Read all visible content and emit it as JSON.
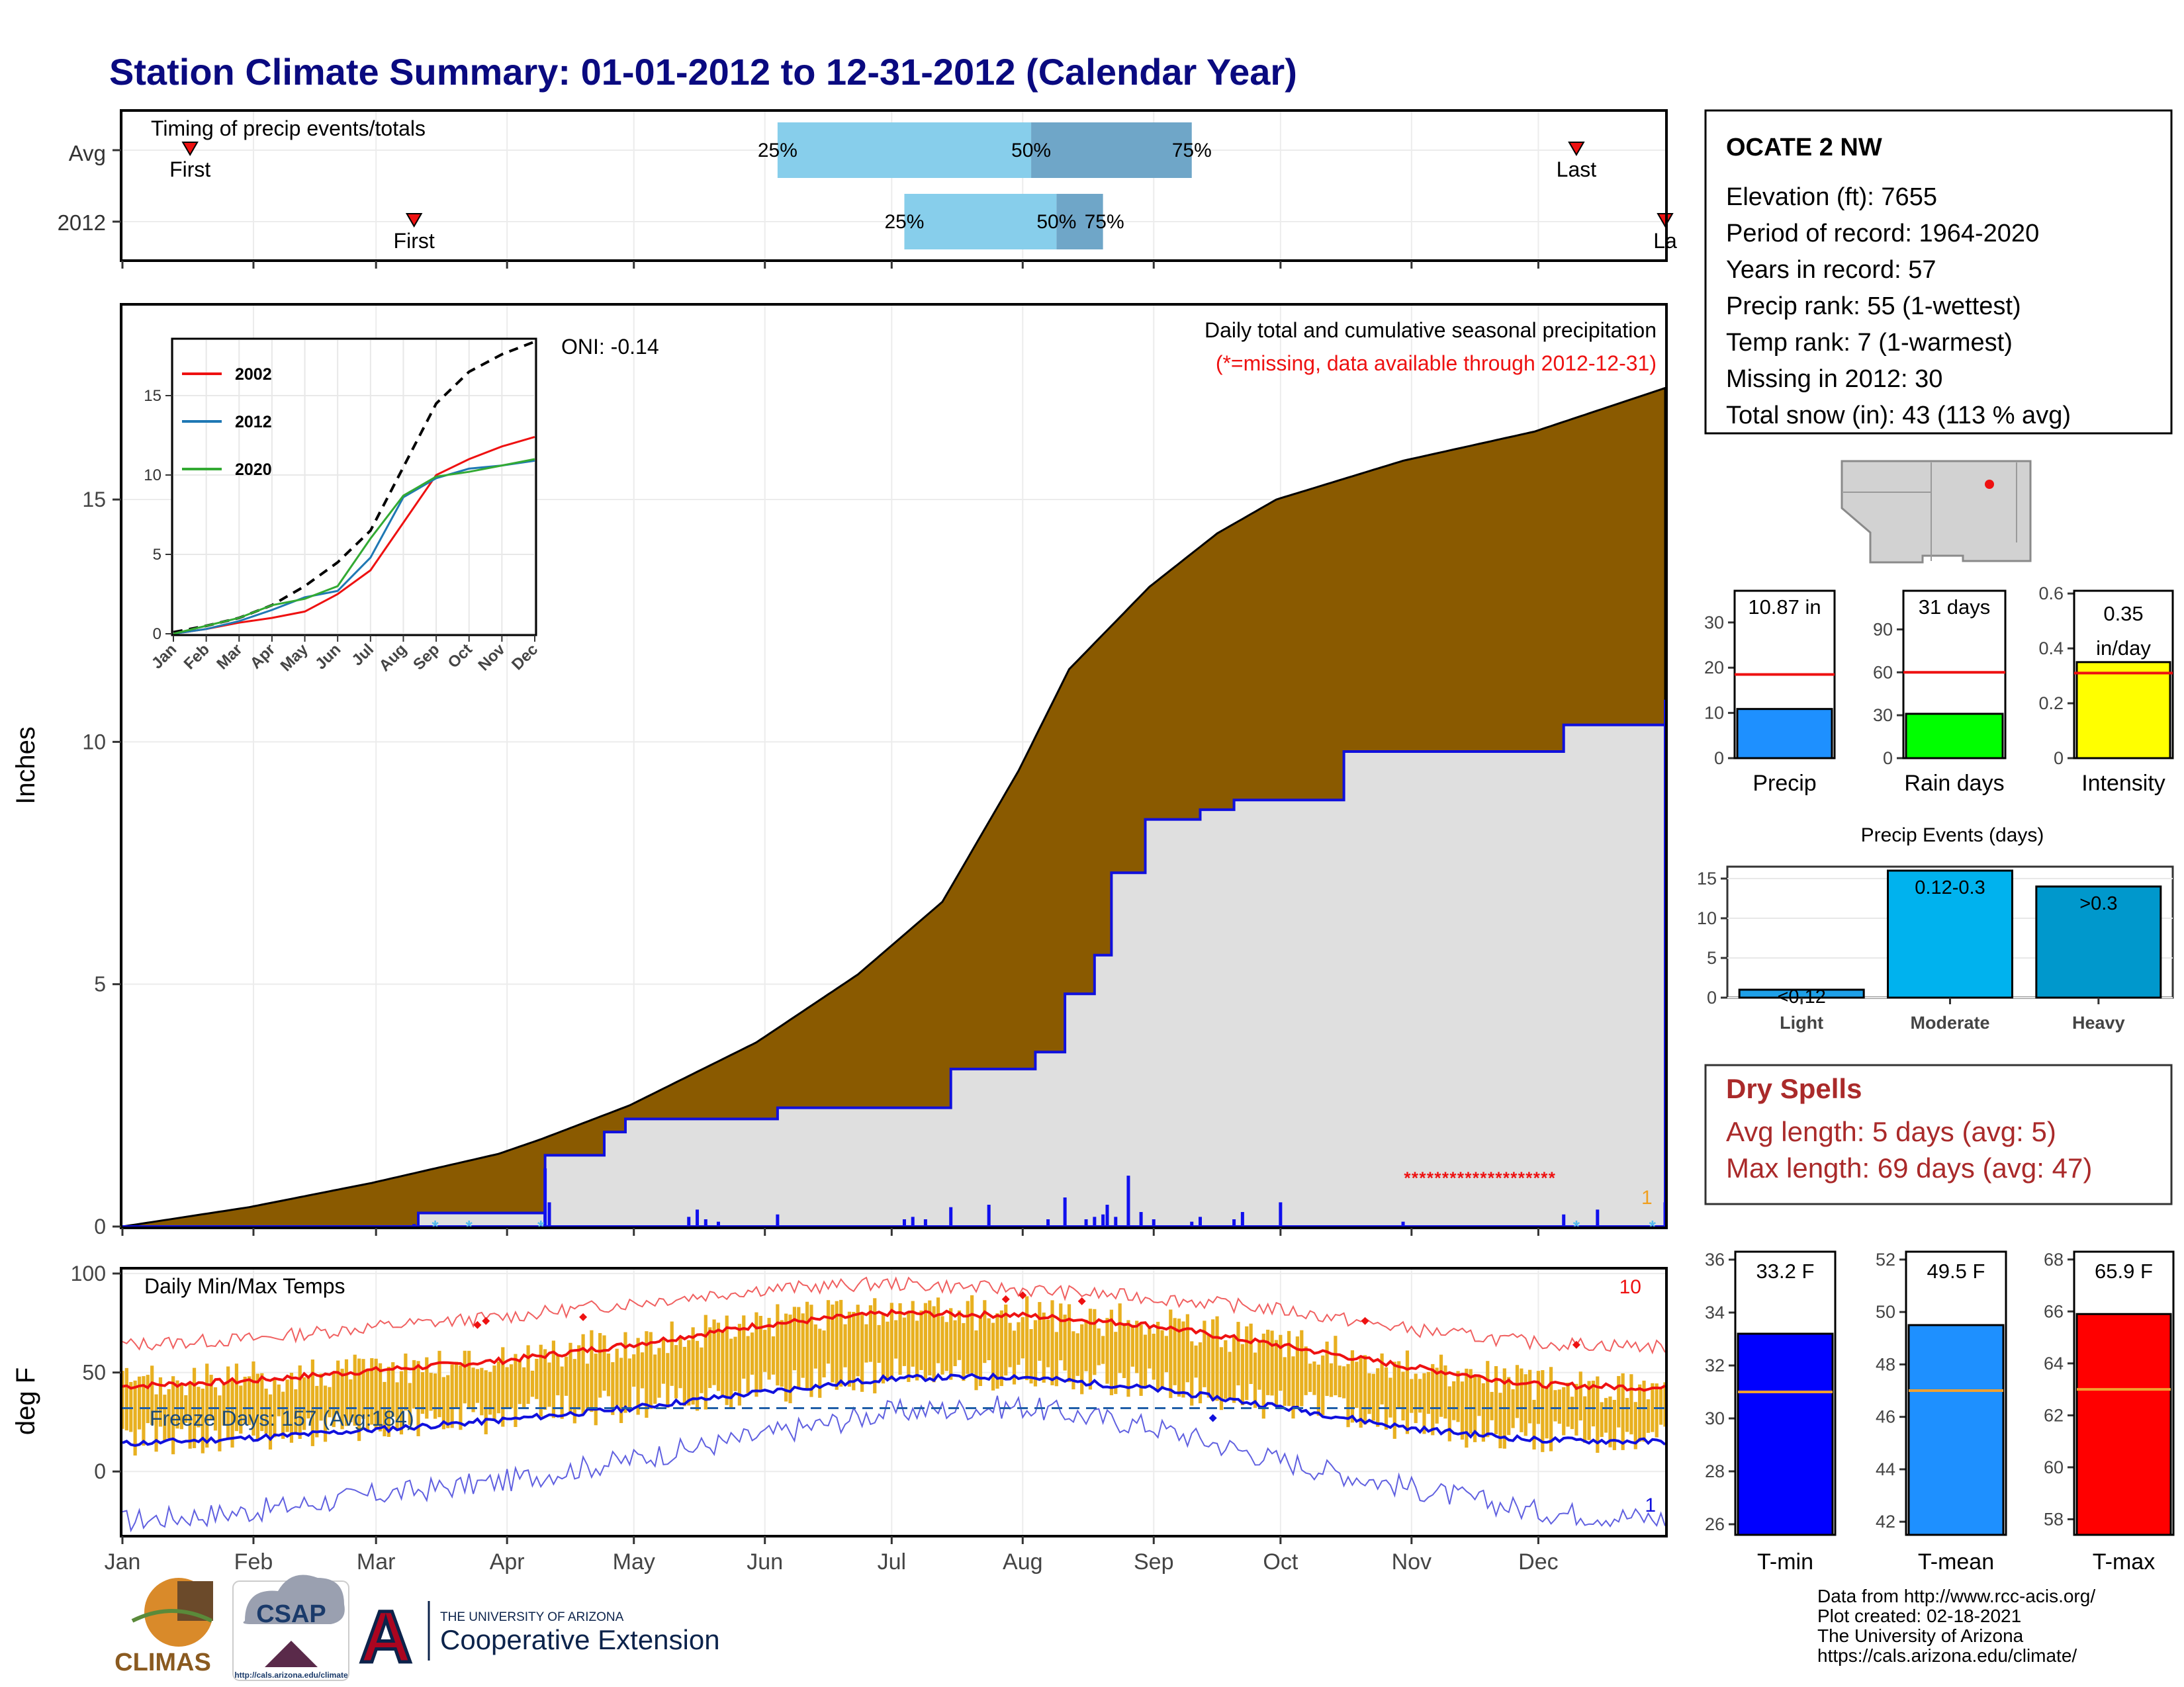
{
  "page": {
    "title": "Station Climate Summary: 01-01-2012 to 12-31-2012 (Calendar Year)"
  },
  "colors": {
    "title": "#0a0a80",
    "cum_avg": "#8a5a00",
    "cum_year": "#dcdcdc",
    "daily_bar": "#1010ee",
    "light_q": "#87ceeb",
    "dark_q": "#6fa6c8",
    "marker": "#ee1111",
    "temp_bar": "#e8b020",
    "avg_max": "#ee1111",
    "avg_min": "#1010dd",
    "dry_spell": "#aa2a2a",
    "rain_days": "#00ff00",
    "intensity": "#ffff00",
    "precip": "#1e90ff",
    "events_light": "#1ea0e8",
    "events_mod": "#00b2ee",
    "events_heavy": "#0098cc"
  },
  "months": [
    "Jan",
    "Feb",
    "Mar",
    "Apr",
    "May",
    "Jun",
    "Jul",
    "Aug",
    "Sep",
    "Oct",
    "Nov",
    "Dec"
  ],
  "timing": {
    "title": "Timing of precip events/totals",
    "rows": [
      {
        "label": "Avg",
        "first_doy": 17,
        "q25_doy": 156,
        "q50_doy": 216,
        "q75_doy": 254,
        "last_doy": 345,
        "first_label": "First",
        "last_label": "Last"
      },
      {
        "label": "2012",
        "first_doy": 70,
        "q25_doy": 186,
        "q50_doy": 222,
        "q75_doy": 233,
        "last_doy": 366,
        "first_label": "First",
        "last_label": "La"
      }
    ],
    "q_labels": [
      "25%",
      "50%",
      "75%"
    ]
  },
  "precip_panel": {
    "ylabel": "Inches",
    "yticks": [
      0,
      5,
      10,
      15
    ],
    "ylim": [
      0,
      19
    ],
    "title": "Daily total and cumulative seasonal precipitation",
    "subtitle": "(*=missing, data available through 2012-12-31)",
    "oni": "ONI: -0.14",
    "corner_value": "1"
  },
  "inset": {
    "yticks": [
      0,
      5,
      10,
      15
    ],
    "legend": [
      "2002",
      "2012",
      "2020"
    ],
    "legend_colors": [
      "#ee1111",
      "#1f78b4",
      "#33aa33"
    ],
    "months": [
      "Jan",
      "Feb",
      "Mar",
      "Apr",
      "May",
      "Jun",
      "Jul",
      "Aug",
      "Sep",
      "Oct",
      "Nov",
      "Dec"
    ]
  },
  "temp_panel": {
    "ylabel": "deg F",
    "title": "Daily Min/Max Temps",
    "yticks": [
      0,
      50,
      100
    ],
    "ylim": [
      -32,
      102
    ],
    "freeze": "Freeze Days: 157 (Avg:184)",
    "freeze_line": 32,
    "record_high_count": "10",
    "record_low_count": "1"
  },
  "station": {
    "name": "OCATE 2 NW",
    "lines": [
      "Elevation (ft): 7655",
      "Period of record: 1964-2020",
      "Years in record: 57",
      "Precip rank: 55 (1-wettest)",
      "Temp rank: 7 (1-warmest)",
      "Missing in 2012: 30",
      "Total snow (in): 43 (113 % avg)"
    ]
  },
  "small_bars": [
    {
      "label": "Precip",
      "value_label": "10.87 in",
      "value": 10.87,
      "avg": 18.5,
      "ymax": 37,
      "ticks": [
        0,
        10,
        20,
        30
      ],
      "color": "#1e90ff"
    },
    {
      "label": "Rain days",
      "value_label": "31 days",
      "value": 31,
      "avg": 60,
      "ymax": 117,
      "ticks": [
        0,
        30,
        60,
        90
      ],
      "color": "#00ff00"
    },
    {
      "label": "Intensity",
      "value_label": "0.35 in/day",
      "value": 0.35,
      "avg": 0.31,
      "ymax": 0.61,
      "ticks": [
        0.0,
        0.2,
        0.4,
        0.6
      ],
      "color": "#ffff00"
    }
  ],
  "events": {
    "title": "Precip Events (days)",
    "categories": [
      "Light",
      "Moderate",
      "Heavy"
    ],
    "values": [
      1,
      16,
      14
    ],
    "labels": [
      "<0.12",
      "0.12-0.3",
      ">0.3"
    ],
    "yticks": [
      0,
      5,
      10,
      15
    ]
  },
  "dry_spells": {
    "title": "Dry Spells",
    "lines": [
      "Avg length: 5 days (avg: 5)",
      "Max length: 69 days (avg: 47)"
    ]
  },
  "temp_bars": [
    {
      "label": "T-min",
      "value_label": "33.2 F",
      "value": 33.2,
      "avg": 31,
      "ymin": 25.6,
      "ymax": 36.3,
      "ticks": [
        26,
        28,
        30,
        32,
        34,
        36
      ],
      "color": "#0000ff"
    },
    {
      "label": "T-mean",
      "value_label": "49.5 F",
      "value": 49.5,
      "avg": 47,
      "ymin": 41.5,
      "ymax": 52.3,
      "ticks": [
        42,
        44,
        46,
        48,
        50,
        52
      ],
      "color": "#1e90ff"
    },
    {
      "label": "T-max",
      "value_label": "65.9 F",
      "value": 65.9,
      "avg": 63,
      "ymin": 57.4,
      "ymax": 68.3,
      "ticks": [
        58,
        60,
        62,
        64,
        66,
        68
      ],
      "color": "#ff0000"
    }
  ],
  "credits": [
    "Data from http://www.rcc-acis.org/",
    "Plot created: 02-18-2021",
    "The University of Arizona",
    "https://cals.arizona.edu/climate/"
  ],
  "logos": {
    "climas": "CLIMAS",
    "csap": "CSAP",
    "csap_url": "http://cals.arizona.edu/climate",
    "ua_small": "THE UNIVERSITY OF ARIZONA",
    "ua_big": "Cooperative Extension",
    "ua_letter": "A"
  },
  "chart_data": [
    {
      "type": "area",
      "title": "Daily total and cumulative seasonal precipitation",
      "ylabel": "Inches",
      "ylim": [
        0,
        19
      ],
      "x_unit": "day of year",
      "series": [
        {
          "name": "avg_cumulative",
          "x": [
            1,
            31,
            60,
            90,
            100,
            121,
            151,
            175,
            195,
            213,
            225,
            244,
            260,
            274,
            304,
            335,
            366
          ],
          "values": [
            0,
            0.4,
            0.9,
            1.5,
            1.8,
            2.5,
            3.8,
            5.2,
            6.7,
            9.4,
            11.5,
            13.2,
            14.3,
            15.0,
            15.8,
            16.4,
            17.3
          ]
        },
        {
          "name": "2012_cumulative",
          "x": [
            1,
            70,
            71,
            100,
            101,
            111,
            115,
            120,
            156,
            185,
            197,
            217,
            224,
            231,
            235,
            243,
            256,
            264,
            290,
            323,
            342,
            346,
            366
          ],
          "values": [
            0,
            0,
            0.28,
            0.28,
            1.47,
            1.47,
            1.95,
            2.22,
            2.45,
            2.45,
            3.25,
            3.6,
            4.8,
            5.6,
            7.3,
            8.4,
            8.6,
            8.8,
            9.8,
            9.8,
            10.35,
            10.35,
            10.87
          ]
        },
        {
          "name": "daily_precip",
          "x": [
            70,
            101,
            102,
            135,
            137,
            139,
            142,
            156,
            186,
            188,
            191,
            197,
            206,
            220,
            224,
            229,
            231,
            233,
            234,
            236,
            239,
            242,
            245,
            254,
            256,
            264,
            266,
            275,
            304,
            342,
            350,
            366
          ],
          "values": [
            0.05,
            1.2,
            0.5,
            0.2,
            0.35,
            0.15,
            0.1,
            0.25,
            0.15,
            0.2,
            0.15,
            0.4,
            0.45,
            0.15,
            0.6,
            0.15,
            0.2,
            0.25,
            0.45,
            0.2,
            1.05,
            0.3,
            0.15,
            0.1,
            0.2,
            0.15,
            0.3,
            0.5,
            0.1,
            0.25,
            0.35,
            0.5
          ]
        }
      ]
    },
    {
      "type": "line",
      "title": "",
      "ylim": [
        0,
        18.5
      ],
      "x_unit": "month index",
      "series": [
        {
          "name": "",
          "x": [
            0,
            1,
            2,
            3,
            4,
            5,
            6,
            7,
            8,
            9,
            10,
            11
          ],
          "values": [
            0.1,
            0.5,
            1,
            1.8,
            3,
            4.5,
            6.5,
            10.5,
            14.5,
            16.5,
            17.6,
            18.4
          ]
        },
        {
          "name": "2002",
          "x": [
            0,
            1,
            2,
            3,
            4,
            5,
            6,
            7,
            8,
            9,
            10,
            11
          ],
          "values": [
            0,
            0.3,
            0.7,
            1,
            1.4,
            2.5,
            4,
            7,
            10,
            11,
            11.8,
            12.4
          ]
        },
        {
          "name": "2012",
          "x": [
            0,
            1,
            2,
            3,
            4,
            5,
            6,
            7,
            8,
            9,
            10,
            11
          ],
          "values": [
            0,
            0.3,
            0.8,
            1.5,
            2.3,
            2.7,
            4.8,
            8.6,
            9.8,
            10.4,
            10.6,
            10.9
          ]
        },
        {
          "name": "2020",
          "x": [
            0,
            1,
            2,
            3,
            4,
            5,
            6,
            7,
            8,
            9,
            10,
            11
          ],
          "values": [
            0,
            0.5,
            1,
            1.8,
            2.2,
            3,
            6,
            8.7,
            9.9,
            10.2,
            10.6,
            11
          ]
        }
      ]
    },
    {
      "type": "line",
      "title": "Daily Min/Max Temps",
      "ylabel": "deg F",
      "ylim": [
        -32,
        102
      ],
      "x_unit": "day of year",
      "series": [
        {
          "name": "avg_max",
          "x": [
            1,
            32,
            60,
            91,
            121,
            152,
            182,
            213,
            244,
            274,
            305,
            335,
            366
          ],
          "values": [
            43,
            46,
            51,
            56,
            64,
            74,
            80,
            79,
            74,
            64,
            53,
            44,
            42
          ]
        },
        {
          "name": "avg_min",
          "x": [
            1,
            32,
            60,
            91,
            121,
            152,
            182,
            213,
            244,
            274,
            305,
            335,
            366
          ],
          "values": [
            14,
            17,
            21,
            26,
            32,
            40,
            47,
            48,
            42,
            33,
            22,
            16,
            15
          ]
        },
        {
          "name": "record_max",
          "x": [
            1,
            32,
            60,
            91,
            121,
            152,
            182,
            213,
            244,
            274,
            305,
            335,
            366
          ],
          "values": [
            64,
            67,
            73,
            78,
            85,
            92,
            95,
            92,
            88,
            82,
            72,
            65,
            63
          ]
        },
        {
          "name": "record_min",
          "x": [
            1,
            32,
            60,
            91,
            121,
            152,
            182,
            213,
            244,
            274,
            305,
            335,
            366
          ],
          "values": [
            -25,
            -20,
            -12,
            -5,
            6,
            18,
            30,
            33,
            23,
            6,
            -8,
            -20,
            -24
          ]
        }
      ]
    },
    {
      "type": "bar",
      "title": "Precip Events (days)",
      "categories": [
        "Light",
        "Moderate",
        "Heavy"
      ],
      "values": [
        1,
        16,
        14
      ],
      "ylim": [
        0,
        16.5
      ]
    }
  ]
}
